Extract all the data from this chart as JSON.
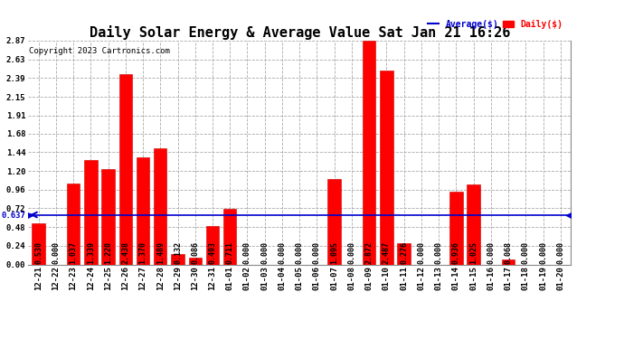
{
  "title": "Daily Solar Energy & Average Value Sat Jan 21 16:26",
  "copyright": "Copyright 2023 Cartronics.com",
  "average_label": "Average($)",
  "daily_label": "Daily($)",
  "average_value": 0.637,
  "categories": [
    "12-21",
    "12-22",
    "12-23",
    "12-24",
    "12-25",
    "12-26",
    "12-27",
    "12-28",
    "12-29",
    "12-30",
    "12-31",
    "01-01",
    "01-02",
    "01-03",
    "01-04",
    "01-05",
    "01-06",
    "01-07",
    "01-08",
    "01-09",
    "01-10",
    "01-11",
    "01-12",
    "01-13",
    "01-14",
    "01-15",
    "01-16",
    "01-17",
    "01-18",
    "01-19",
    "01-20"
  ],
  "values": [
    0.53,
    0.0,
    1.037,
    1.339,
    1.22,
    2.438,
    1.37,
    1.489,
    0.132,
    0.086,
    0.493,
    0.711,
    0.0,
    0.0,
    0.0,
    0.0,
    0.0,
    1.095,
    0.0,
    2.872,
    2.487,
    0.276,
    0.0,
    0.0,
    0.936,
    1.025,
    0.0,
    0.068,
    0.0,
    0.0,
    0.0
  ],
  "bar_color": "#ff0000",
  "bar_edge_color": "#cc0000",
  "average_line_color": "#0000cc",
  "average_dot_color": "#0000cc",
  "background_color": "#ffffff",
  "grid_color": "#aaaaaa",
  "ylim_min": 0.0,
  "ylim_max": 2.87,
  "yticks": [
    0.0,
    0.24,
    0.48,
    0.72,
    0.96,
    1.2,
    1.44,
    1.68,
    1.91,
    2.15,
    2.39,
    2.63,
    2.87
  ],
  "title_fontsize": 11,
  "axis_fontsize": 6.5,
  "value_fontsize": 6,
  "legend_fontsize": 7,
  "copyright_fontsize": 6.5,
  "avg_line_y": 0.637,
  "avg_left_label": "0.637",
  "bar_width": 0.75
}
